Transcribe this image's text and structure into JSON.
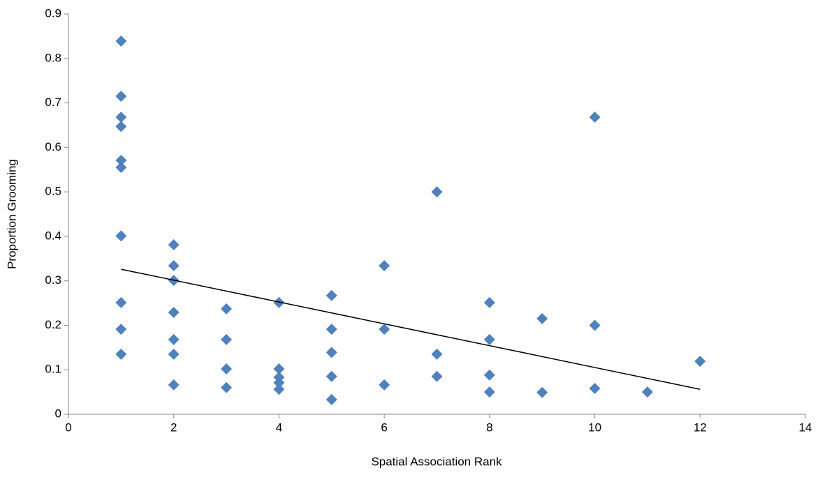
{
  "chart_data": {
    "type": "scatter",
    "x_label": "Spatial Association Rank",
    "y_label": "Proportion Grooming",
    "series": [
      {
        "color": "#4f81bd",
        "x": [
          1,
          1,
          1,
          1,
          1,
          1,
          1,
          1,
          1,
          1,
          2,
          2,
          2,
          2,
          2,
          2,
          2,
          3,
          3,
          3,
          3,
          4,
          4,
          4,
          4,
          4,
          5,
          5,
          5,
          5,
          5,
          6,
          6,
          6,
          7,
          7,
          7,
          8,
          8,
          8,
          8,
          9,
          9,
          10,
          10,
          10,
          11,
          12
        ],
        "values": [
          0.839,
          0.715,
          0.668,
          0.647,
          0.571,
          0.555,
          0.401,
          0.251,
          0.191,
          0.135,
          0.381,
          0.334,
          0.301,
          0.229,
          0.168,
          0.135,
          0.066,
          0.237,
          0.168,
          0.102,
          0.06,
          0.251,
          0.102,
          0.083,
          0.071,
          0.056,
          0.267,
          0.191,
          0.139,
          0.085,
          0.033,
          0.334,
          0.191,
          0.066,
          0.5,
          0.135,
          0.085,
          0.251,
          0.168,
          0.088,
          0.05,
          0.215,
          0.049,
          0.668,
          0.2,
          0.058,
          0.05,
          0.119
        ]
      }
    ],
    "trendline": {
      "color": "#000000",
      "x": [
        1,
        12
      ],
      "values": [
        0.326,
        0.056
      ]
    },
    "xlim": [
      0,
      14
    ],
    "xticks": [
      0,
      2,
      4,
      6,
      8,
      10,
      12,
      14
    ],
    "ylim": [
      0,
      0.9
    ],
    "yticks": [
      0,
      0.1,
      0.2,
      0.3,
      0.4,
      0.5,
      0.6,
      0.7,
      0.8,
      0.9
    ],
    "grid": false
  }
}
